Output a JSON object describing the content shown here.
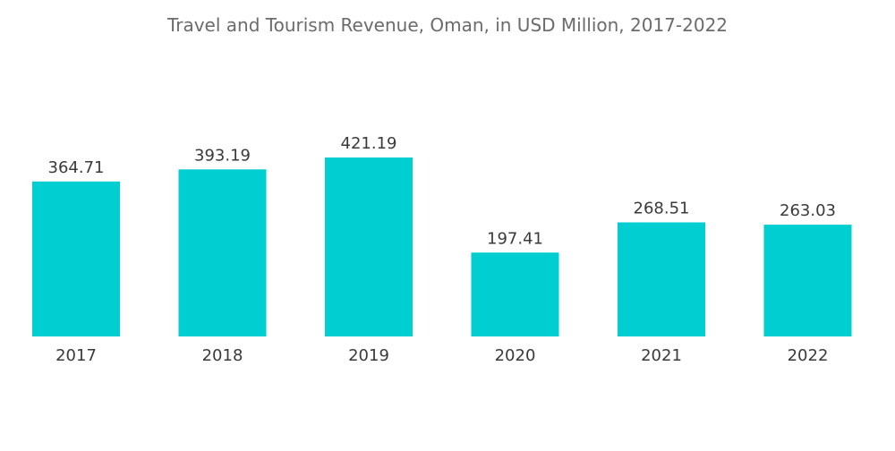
{
  "chart_data": {
    "type": "bar",
    "title": "Travel and Tourism Revenue, Oman, in USD Million, 2017-2022",
    "categories": [
      "2017",
      "2018",
      "2019",
      "2020",
      "2021",
      "2022"
    ],
    "values": [
      364.71,
      393.19,
      421.19,
      197.41,
      268.51,
      263.03
    ],
    "value_labels": [
      "364.71",
      "393.19",
      "421.19",
      "197.41",
      "268.51",
      "263.03"
    ],
    "xlabel": "",
    "ylabel": "",
    "ylim": [
      0,
      421.19
    ],
    "grid": false,
    "bar_color": "#00ced1"
  }
}
